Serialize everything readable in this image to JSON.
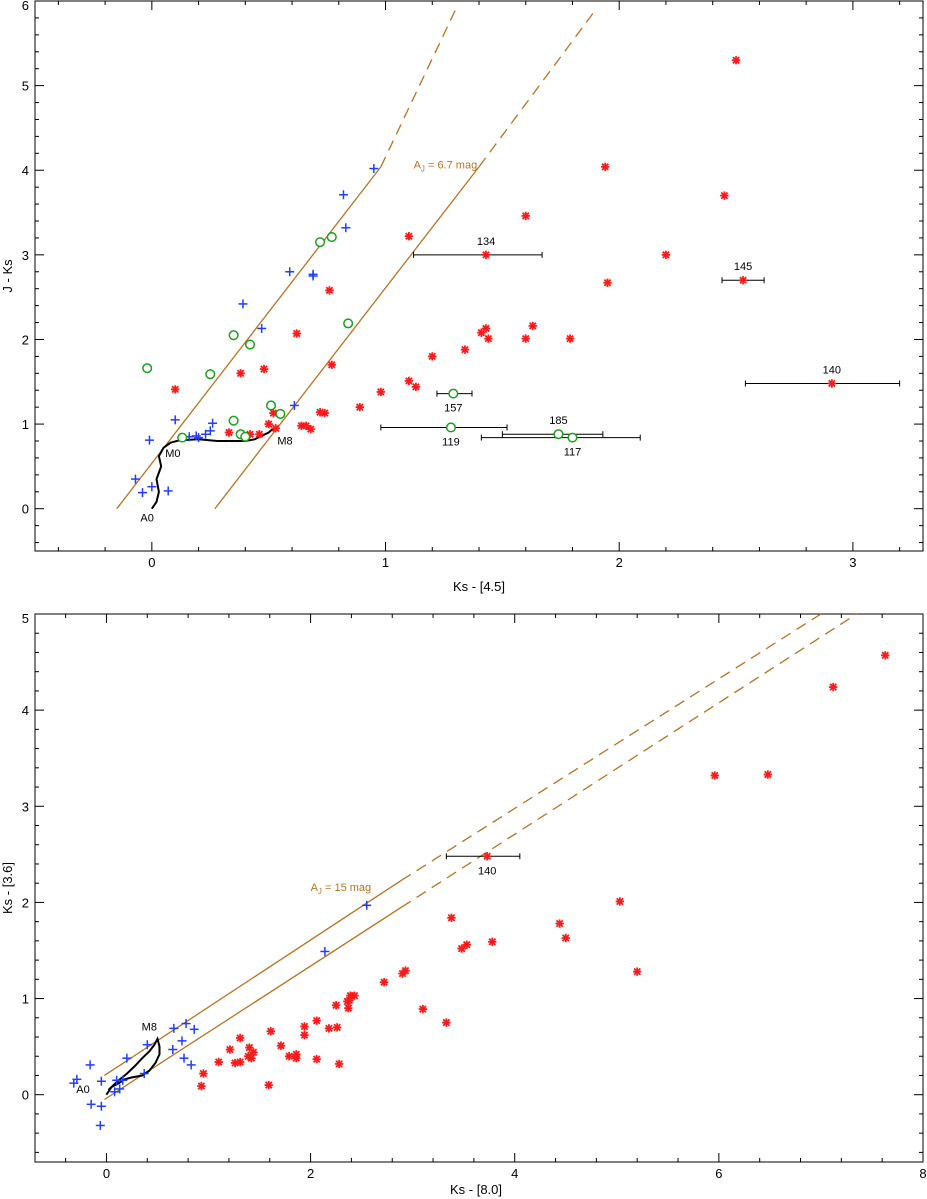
{
  "colors": {
    "reddening": "#b8731f",
    "star_symbol": "#ff1a1a",
    "plus_symbol": "#1f3fff",
    "circle_symbol": "#1aa01a",
    "track": "#000000"
  },
  "chart_data": [
    {
      "type": "scatter",
      "xlabel": "Ks - [4.5]",
      "ylabel": "J - Ks",
      "xlim": [
        -0.5,
        3.3
      ],
      "ylim": [
        -0.5,
        6
      ],
      "xticks": [
        0,
        1,
        2,
        3
      ],
      "yticks": [
        0,
        1,
        2,
        3,
        4,
        5,
        6
      ],
      "xtick_labels": [
        "0",
        "1",
        "2",
        "3"
      ],
      "ytick_labels": [
        "0",
        "1",
        "2",
        "3",
        "4",
        "5",
        "6"
      ],
      "reddening_label": {
        "main": "A",
        "sub": "J",
        "rest": " = 6.7 mag",
        "x": 1.12,
        "y": 4.02
      },
      "reddening_lines": [
        {
          "solid": [
            [
              -0.15,
              0.0
            ],
            [
              0.98,
              4.04
            ]
          ],
          "dashed": [
            [
              0.98,
              4.04
            ],
            [
              1.3,
              5.9
            ]
          ]
        },
        {
          "solid": [
            [
              0.27,
              0.0
            ],
            [
              1.4,
              4.04
            ]
          ],
          "dashed": [
            [
              1.4,
              4.04
            ],
            [
              1.9,
              5.9
            ]
          ]
        }
      ],
      "dwarf_track": [
        [
          0.0,
          0.0
        ],
        [
          0.02,
          0.08
        ],
        [
          0.03,
          0.2
        ],
        [
          0.02,
          0.35
        ],
        [
          0.04,
          0.5
        ],
        [
          0.03,
          0.62
        ],
        [
          0.05,
          0.72
        ],
        [
          0.08,
          0.78
        ],
        [
          0.12,
          0.81
        ],
        [
          0.2,
          0.82
        ],
        [
          0.28,
          0.8
        ],
        [
          0.36,
          0.8
        ],
        [
          0.4,
          0.8
        ],
        [
          0.44,
          0.82
        ],
        [
          0.47,
          0.86
        ],
        [
          0.5,
          0.9
        ],
        [
          0.52,
          0.95
        ]
      ],
      "track_labels": [
        {
          "text": "A0",
          "x": -0.02,
          "y": -0.15
        },
        {
          "text": "M0",
          "x": 0.09,
          "y": 0.61
        },
        {
          "text": "M8",
          "x": 0.57,
          "y": 0.76
        }
      ],
      "series": [
        {
          "marker": "star",
          "points": [
            [
              2.5,
              5.3
            ],
            [
              1.94,
              4.04
            ],
            [
              2.45,
              3.7
            ],
            [
              1.6,
              3.46
            ],
            [
              1.1,
              3.22
            ],
            [
              2.2,
              3.0
            ],
            [
              1.95,
              2.67
            ],
            [
              0.76,
              2.58
            ],
            [
              1.63,
              2.16
            ],
            [
              1.43,
              2.13
            ],
            [
              1.41,
              2.08
            ],
            [
              0.62,
              2.07
            ],
            [
              1.44,
              2.01
            ],
            [
              1.6,
              2.01
            ],
            [
              1.79,
              2.01
            ],
            [
              1.34,
              1.88
            ],
            [
              1.2,
              1.8
            ],
            [
              0.77,
              1.7
            ],
            [
              0.48,
              1.65
            ],
            [
              0.38,
              1.6
            ],
            [
              1.1,
              1.51
            ],
            [
              1.13,
              1.44
            ],
            [
              0.1,
              1.41
            ],
            [
              0.98,
              1.38
            ],
            [
              0.89,
              1.2
            ],
            [
              0.72,
              1.14
            ],
            [
              0.74,
              1.13
            ],
            [
              0.52,
              1.13
            ],
            [
              0.5,
              1.0
            ],
            [
              0.66,
              0.98
            ],
            [
              0.64,
              0.98
            ],
            [
              0.68,
              0.94
            ],
            [
              0.53,
              0.95
            ],
            [
              0.33,
              0.9
            ],
            [
              0.46,
              0.88
            ],
            [
              0.42,
              0.88
            ]
          ]
        },
        {
          "marker": "plus",
          "points": [
            [
              0.95,
              4.02
            ],
            [
              0.82,
              3.71
            ],
            [
              0.83,
              3.32
            ],
            [
              0.59,
              2.8
            ],
            [
              0.69,
              2.77
            ],
            [
              0.69,
              2.75
            ],
            [
              0.39,
              2.42
            ],
            [
              0.47,
              2.13
            ],
            [
              0.61,
              1.22
            ],
            [
              0.1,
              1.05
            ],
            [
              0.26,
              1.01
            ],
            [
              0.25,
              0.92
            ],
            [
              0.23,
              0.88
            ],
            [
              0.19,
              0.86
            ],
            [
              0.16,
              0.85
            ],
            [
              0.2,
              0.84
            ],
            [
              -0.01,
              0.81
            ],
            [
              -0.07,
              0.35
            ],
            [
              0.0,
              0.26
            ],
            [
              -0.04,
              0.19
            ],
            [
              0.07,
              0.21
            ]
          ]
        },
        {
          "marker": "circle",
          "points": [
            [
              0.77,
              3.21
            ],
            [
              0.72,
              3.15
            ],
            [
              0.84,
              2.19
            ],
            [
              0.35,
              2.05
            ],
            [
              0.42,
              1.94
            ],
            [
              -0.02,
              1.66
            ],
            [
              0.25,
              1.59
            ],
            [
              0.51,
              1.22
            ],
            [
              0.55,
              1.12
            ],
            [
              0.35,
              1.04
            ],
            [
              0.13,
              0.84
            ],
            [
              0.38,
              0.88
            ],
            [
              0.4,
              0.85
            ]
          ]
        }
      ],
      "error_bars": [
        {
          "label": "134",
          "label_pos": "above",
          "marker": "star",
          "x": 1.43,
          "y": 3.0,
          "xlo": 1.12,
          "xhi": 1.67
        },
        {
          "label": "145",
          "label_pos": "above",
          "marker": "star",
          "x": 2.53,
          "y": 2.7,
          "xlo": 2.44,
          "xhi": 2.62
        },
        {
          "label": "140",
          "label_pos": "above",
          "marker": "star",
          "x": 2.91,
          "y": 1.48,
          "xlo": 2.54,
          "xhi": 3.2
        },
        {
          "label": "157",
          "label_pos": "below",
          "marker": "circle",
          "x": 1.29,
          "y": 1.36,
          "xlo": 1.22,
          "xhi": 1.37
        },
        {
          "label": "119",
          "label_pos": "below",
          "marker": "circle",
          "x": 1.28,
          "y": 0.96,
          "xlo": 0.98,
          "xhi": 1.52
        },
        {
          "label": "185",
          "label_pos": "above",
          "marker": "circle",
          "x": 1.74,
          "y": 0.88,
          "xlo": 1.5,
          "xhi": 1.93
        },
        {
          "label": "117",
          "label_pos": "below",
          "marker": "circle",
          "x": 1.8,
          "y": 0.84,
          "xlo": 1.41,
          "xhi": 2.09
        }
      ]
    },
    {
      "type": "scatter",
      "xlabel": "Ks - [8.0]",
      "ylabel": "Ks - [3.6]",
      "xlim": [
        -0.7,
        8
      ],
      "ylim": [
        -0.7,
        5
      ],
      "xticks": [
        0,
        2,
        4,
        6,
        8
      ],
      "yticks": [
        0,
        1,
        2,
        3,
        4,
        5
      ],
      "xtick_labels": [
        "0",
        "2",
        "4",
        "6",
        "8"
      ],
      "ytick_labels": [
        "0",
        "1",
        "2",
        "3",
        "4",
        "5"
      ],
      "reddening_label": {
        "main": "A",
        "sub": "J",
        "rest": " = 15 mag",
        "x": 2.0,
        "y": 2.12
      },
      "reddening_lines": [
        {
          "solid": [
            [
              -0.02,
              0.2
            ],
            [
              2.89,
              2.23
            ]
          ],
          "dashed": [
            [
              2.89,
              2.23
            ],
            [
              7.0,
              5.0
            ]
          ]
        },
        {
          "solid": [
            [
              -0.02,
              -0.05
            ],
            [
              2.89,
              1.95
            ]
          ],
          "dashed": [
            [
              2.89,
              1.95
            ],
            [
              7.35,
              5.0
            ]
          ]
        }
      ],
      "dwarf_track": [
        [
          0.0,
          0.0
        ],
        [
          0.05,
          0.08
        ],
        [
          0.12,
          0.12
        ],
        [
          0.18,
          0.16
        ],
        [
          0.25,
          0.18
        ],
        [
          0.35,
          0.2
        ],
        [
          0.42,
          0.25
        ],
        [
          0.48,
          0.33
        ],
        [
          0.52,
          0.42
        ],
        [
          0.52,
          0.5
        ],
        [
          0.5,
          0.58
        ],
        [
          0.47,
          0.52
        ],
        [
          0.42,
          0.45
        ],
        [
          0.35,
          0.38
        ],
        [
          0.28,
          0.3
        ],
        [
          0.2,
          0.22
        ],
        [
          0.12,
          0.15
        ],
        [
          0.05,
          0.08
        ],
        [
          0.02,
          0.05
        ]
      ],
      "track_labels": [
        {
          "text": "A0",
          "x": -0.23,
          "y": 0.02
        },
        {
          "text": "M8",
          "x": 0.42,
          "y": 0.67
        }
      ],
      "series": [
        {
          "marker": "star",
          "points": [
            [
              7.63,
              4.57
            ],
            [
              7.12,
              4.24
            ],
            [
              6.48,
              3.33
            ],
            [
              5.96,
              3.32
            ],
            [
              5.03,
              2.01
            ],
            [
              3.38,
              1.84
            ],
            [
              4.44,
              1.78
            ],
            [
              3.53,
              1.56
            ],
            [
              3.48,
              1.52
            ],
            [
              4.5,
              1.63
            ],
            [
              3.78,
              1.59
            ],
            [
              5.2,
              1.28
            ],
            [
              2.93,
              1.29
            ],
            [
              2.9,
              1.26
            ],
            [
              2.72,
              1.17
            ],
            [
              2.43,
              1.03
            ],
            [
              2.39,
              1.03
            ],
            [
              2.38,
              0.98
            ],
            [
              2.36,
              0.97
            ],
            [
              2.37,
              0.9
            ],
            [
              2.25,
              0.93
            ],
            [
              3.1,
              0.89
            ],
            [
              3.33,
              0.75
            ],
            [
              2.06,
              0.77
            ],
            [
              2.18,
              0.69
            ],
            [
              2.26,
              0.7
            ],
            [
              1.94,
              0.71
            ],
            [
              1.94,
              0.62
            ],
            [
              1.61,
              0.66
            ],
            [
              1.31,
              0.59
            ],
            [
              1.86,
              0.42
            ],
            [
              1.79,
              0.4
            ],
            [
              1.86,
              0.38
            ],
            [
              1.4,
              0.49
            ],
            [
              1.44,
              0.44
            ],
            [
              1.42,
              0.38
            ],
            [
              1.39,
              0.4
            ],
            [
              1.71,
              0.51
            ],
            [
              1.21,
              0.47
            ],
            [
              1.31,
              0.34
            ],
            [
              1.26,
              0.33
            ],
            [
              1.1,
              0.34
            ],
            [
              0.95,
              0.22
            ],
            [
              0.93,
              0.09
            ],
            [
              1.59,
              0.1
            ],
            [
              2.06,
              0.37
            ],
            [
              2.28,
              0.32
            ]
          ]
        },
        {
          "marker": "plus",
          "points": [
            [
              2.55,
              1.97
            ],
            [
              2.14,
              1.49
            ],
            [
              0.78,
              0.74
            ],
            [
              0.86,
              0.68
            ],
            [
              0.66,
              0.69
            ],
            [
              0.74,
              0.56
            ],
            [
              0.65,
              0.47
            ],
            [
              0.4,
              0.52
            ],
            [
              0.2,
              0.38
            ],
            [
              0.76,
              0.38
            ],
            [
              0.83,
              0.31
            ],
            [
              0.37,
              0.22
            ],
            [
              0.1,
              0.15
            ],
            [
              0.16,
              0.15
            ],
            [
              -0.16,
              0.31
            ],
            [
              -0.29,
              0.16
            ],
            [
              -0.32,
              0.12
            ],
            [
              -0.05,
              0.14
            ],
            [
              0.13,
              0.06
            ],
            [
              0.08,
              0.03
            ],
            [
              -0.15,
              -0.1
            ],
            [
              -0.05,
              -0.12
            ],
            [
              -0.06,
              -0.32
            ]
          ]
        }
      ],
      "error_bars": [
        {
          "label": "140",
          "label_pos": "below",
          "marker": "star",
          "x": 3.73,
          "y": 2.48,
          "xlo": 3.33,
          "xhi": 4.05
        }
      ]
    }
  ]
}
